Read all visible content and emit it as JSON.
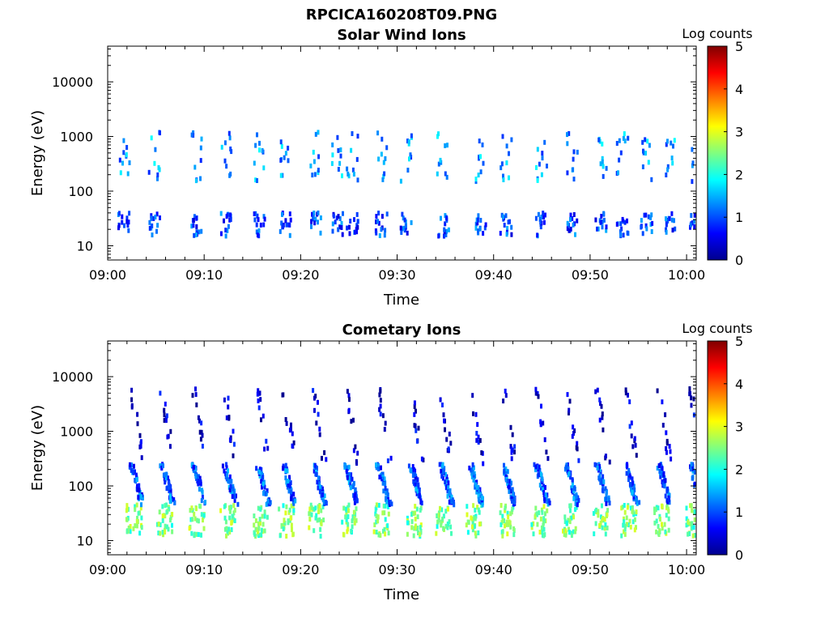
{
  "figure": {
    "title": "RPCICA160208T09.PNG",
    "colormap": "jet",
    "background": "#ffffff"
  },
  "chart_data": [
    {
      "type": "heatmap",
      "title": "Solar Wind Ions",
      "xlabel": "Time",
      "ylabel": "Energy (eV)",
      "x_ticks": [
        "09:00",
        "09:10",
        "09:20",
        "09:30",
        "09:40",
        "09:50",
        "10:00"
      ],
      "x_tick_minutes": [
        0,
        10,
        20,
        30,
        40,
        50,
        60
      ],
      "xlim_minutes": [
        0,
        61
      ],
      "y_scale": "log",
      "y_ticks": [
        "10",
        "100",
        "1000",
        "10000"
      ],
      "y_tick_values": [
        10,
        100,
        1000,
        10000
      ],
      "ylim": [
        5.5,
        45000
      ],
      "colorbar": {
        "label": "Log counts",
        "ticks": [
          "0",
          "1",
          "2",
          "3",
          "4",
          "5"
        ],
        "range": [
          0,
          5
        ]
      },
      "sweep_minutes": [
        1.3,
        4.5,
        8.8,
        12,
        15.4,
        18.1,
        21.2,
        23.5,
        25,
        28,
        30.6,
        34.4,
        38.4,
        40.9,
        44.6,
        47.8,
        50.8,
        53,
        55.5,
        58,
        60.6
      ],
      "bands": [
        {
          "energy_range": [
            15,
            40
          ],
          "log_counts": 0.9
        },
        {
          "energy_range": [
            150,
            1200
          ],
          "log_counts": 1.3
        }
      ]
    },
    {
      "type": "heatmap",
      "title": "Cometary Ions",
      "xlabel": "Time",
      "ylabel": "Energy (eV)",
      "x_ticks": [
        "09:00",
        "09:10",
        "09:20",
        "09:30",
        "09:40",
        "09:50",
        "10:00"
      ],
      "x_tick_minutes": [
        0,
        10,
        20,
        30,
        40,
        50,
        60
      ],
      "xlim_minutes": [
        0,
        61
      ],
      "y_scale": "log",
      "y_ticks": [
        "10",
        "100",
        "1000",
        "10000"
      ],
      "y_tick_values": [
        10,
        100,
        1000,
        10000
      ],
      "ylim": [
        5.5,
        45000
      ],
      "colorbar": {
        "label": "Log counts",
        "ticks": [
          "0",
          "1",
          "2",
          "3",
          "4",
          "5"
        ],
        "range": [
          0,
          5
        ]
      },
      "sweep_minutes": [
        2.3,
        5.5,
        8.8,
        12,
        15.4,
        18.1,
        21.2,
        24.6,
        27.9,
        31.3,
        34.4,
        37.5,
        40.9,
        44.3,
        47.4,
        50.6,
        53.6,
        57,
        60.3
      ],
      "bands": [
        {
          "energy_range": [
            12,
            45
          ],
          "log_counts": 2.4
        },
        {
          "energy_range": [
            45,
            250
          ],
          "log_counts": 1.0
        },
        {
          "energy_range": [
            250,
            6000
          ],
          "log_counts": 0.3
        }
      ]
    }
  ]
}
